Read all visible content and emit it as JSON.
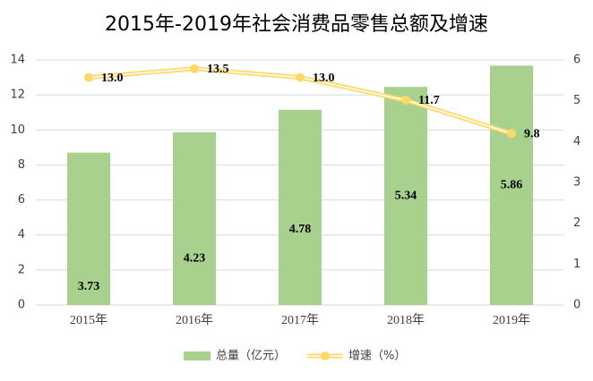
{
  "chart_data": {
    "type": "bar-line",
    "title": "2015年-2019年社会消费品零售总额及增速",
    "categories": [
      "2015年",
      "2016年",
      "2017年",
      "2018年",
      "2019年"
    ],
    "series": [
      {
        "name": "总量（亿元）",
        "type": "bar",
        "axis": "y2",
        "color": "#a9d18e",
        "values": [
          3.73,
          4.23,
          4.78,
          5.34,
          5.86
        ]
      },
      {
        "name": "增速（%）",
        "type": "line",
        "axis": "y",
        "color": "#ffd966",
        "values": [
          13.0,
          13.5,
          13.0,
          11.7,
          9.8
        ],
        "value_labels": [
          "13.0",
          "13.5",
          "13.0",
          "11.7",
          "9.8"
        ]
      }
    ],
    "ylim": [
      0,
      14
    ],
    "yticks": [
      0,
      2,
      4,
      6,
      8,
      10,
      12,
      14
    ],
    "y2lim": [
      0,
      6
    ],
    "y2ticks": [
      0,
      1,
      2,
      3,
      4,
      5,
      6
    ],
    "grid": true,
    "legend": "bottom"
  }
}
